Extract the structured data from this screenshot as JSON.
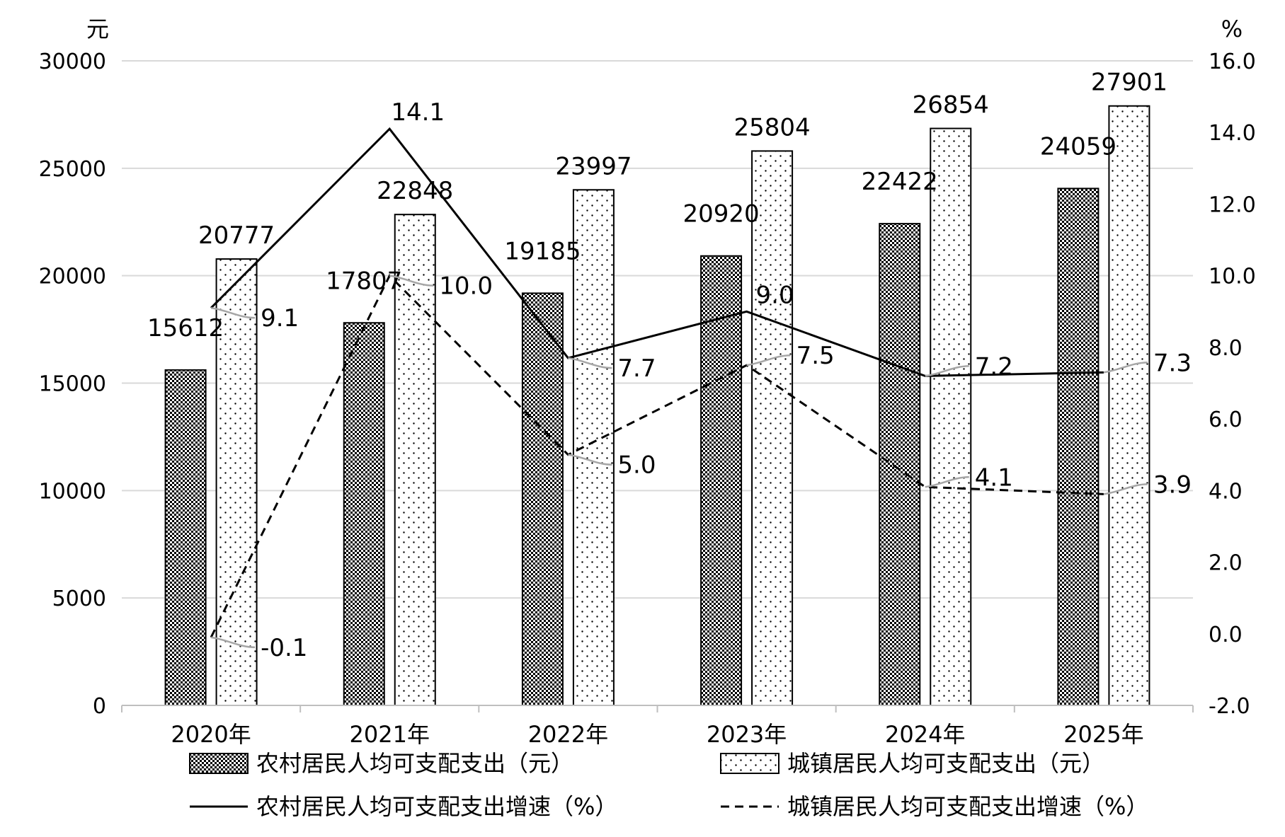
{
  "chart_data": {
    "type": "bar",
    "categories": [
      "2020年",
      "2021年",
      "2022年",
      "2023年",
      "2024年",
      "2025年"
    ],
    "left_axis": {
      "unit": "元",
      "ylim": [
        0,
        30000
      ],
      "ticks": [
        0,
        5000,
        10000,
        15000,
        20000,
        25000,
        30000
      ]
    },
    "right_axis": {
      "unit": "%",
      "ylim": [
        -2.0,
        16.0
      ],
      "ticks": [
        "-2.0",
        "0.0",
        "2.0",
        "4.0",
        "6.0",
        "8.0",
        "10.0",
        "12.0",
        "14.0",
        "16.0"
      ]
    },
    "grid": true,
    "legend_position": "bottom",
    "series": [
      {
        "name": "农村居民人均可支配支出（元）",
        "kind": "bar",
        "axis": "left",
        "pattern": "dense-dots",
        "values": [
          15612,
          17807,
          19185,
          20920,
          22422,
          24059
        ]
      },
      {
        "name": "城镇居民人均可支配支出（元）",
        "kind": "bar",
        "axis": "left",
        "pattern": "sparse-dots",
        "values": [
          20777,
          22848,
          23997,
          25804,
          26854,
          27901
        ]
      },
      {
        "name": "农村居民人均可支配支出增速（%）",
        "kind": "line",
        "axis": "right",
        "dash": "solid",
        "values": [
          9.1,
          14.1,
          7.7,
          9.0,
          7.2,
          7.3
        ],
        "labels": [
          "9.1",
          "14.1",
          "7.7",
          "9.0",
          "7.2",
          "7.3"
        ]
      },
      {
        "name": "城镇居民人均可支配支出增速（%）",
        "kind": "line",
        "axis": "right",
        "dash": "dashed",
        "values": [
          -0.1,
          10.0,
          5.0,
          7.5,
          4.1,
          3.9
        ],
        "labels": [
          "-0.1",
          "10.0",
          "5.0",
          "7.5",
          "4.1",
          "3.9"
        ]
      }
    ],
    "colors": {
      "axis": "#bfbfbf",
      "grid": "#d9d9d9",
      "ink": "#000000",
      "leader": "#a6a6a6"
    }
  }
}
